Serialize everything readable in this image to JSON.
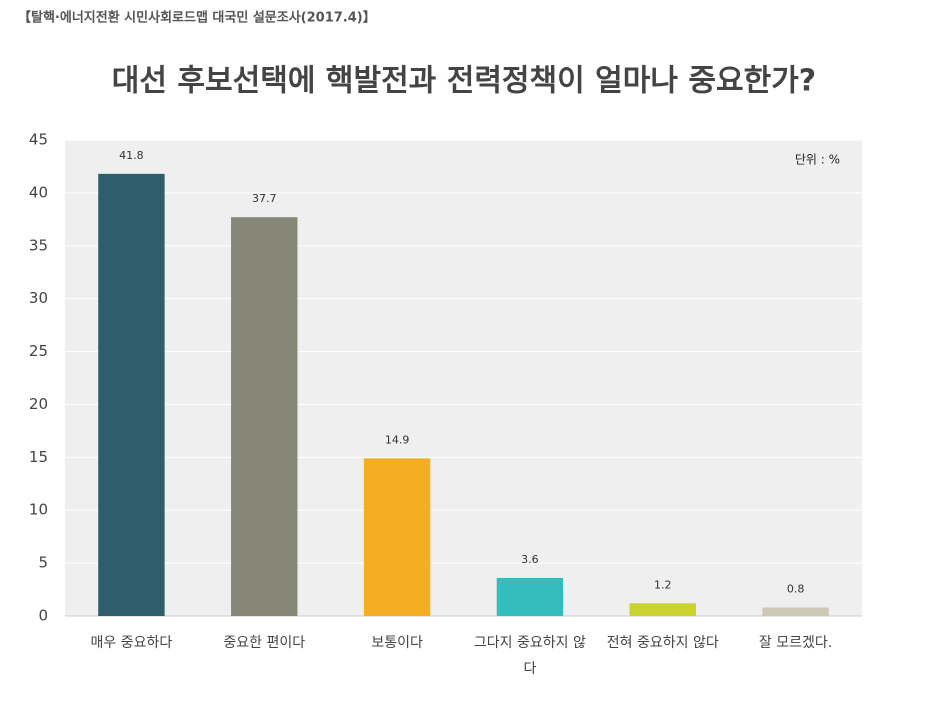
{
  "chart_data": {
    "type": "bar",
    "subtitle": "【탈핵·에너지전환 시민사회로드맵 대국민 설문조사(2017.4)】",
    "title": "대선 후보선택에 핵발전과 전력정책이 얼마나 중요한가?",
    "annotation": "단위 : %",
    "categories": [
      "매우 중요하다",
      "중요한 편이다",
      "보통이다",
      "그다지 중요하지 않다",
      "전혀 중요하지 않다",
      "잘 모르겠다."
    ],
    "values": [
      41.8,
      37.7,
      14.9,
      3.6,
      1.2,
      0.8
    ],
    "colors": [
      "#2e5e6b",
      "#868776",
      "#f5ae22",
      "#33bdbd",
      "#c9d22e",
      "#cdc9b6"
    ],
    "ylim": [
      0,
      45
    ],
    "yticks": [
      0,
      5,
      10,
      15,
      20,
      25,
      30,
      35,
      40,
      45
    ],
    "grid": true
  }
}
